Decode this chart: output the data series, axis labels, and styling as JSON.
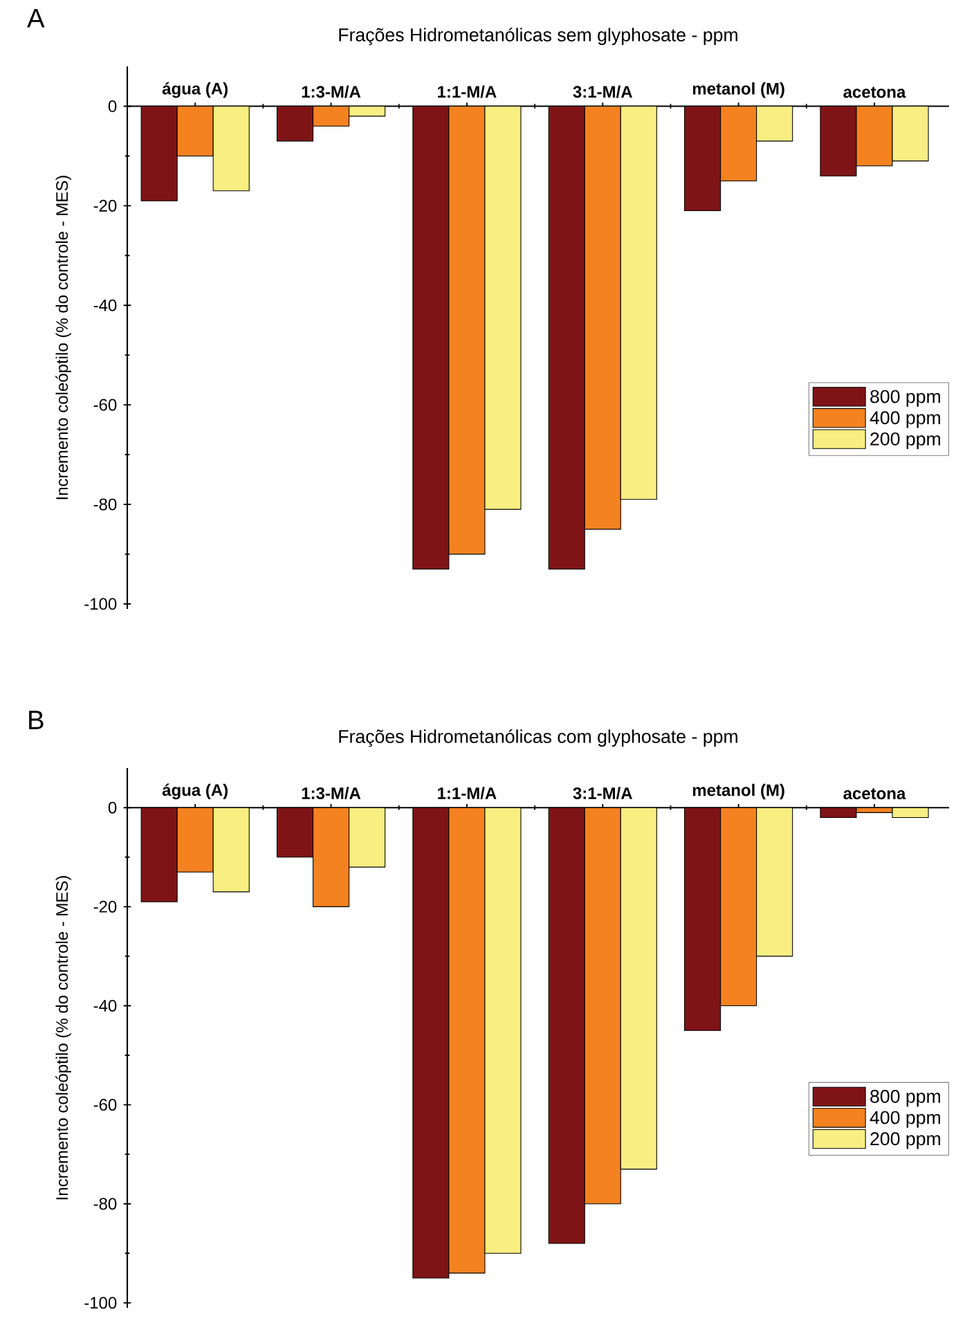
{
  "chart_data": [
    {
      "type": "bar",
      "title": "Frações Hidrometanólicas sem glyphosate - ppm",
      "ylabel": "Incremento coleóptilo (% do controle - MES)",
      "annotations": [
        "A"
      ],
      "categories": [
        "água (A)",
        "1:3-M/A",
        "1:1-M/A",
        "3:1-M/A",
        "metanol (M)",
        "acetona"
      ],
      "series": [
        {
          "name": "800 ppm",
          "color": "#7f1416",
          "values": [
            -19,
            -7,
            -93,
            -93,
            -21,
            -14
          ]
        },
        {
          "name": "400 ppm",
          "color": "#f58220",
          "values": [
            -10,
            -4,
            -90,
            -85,
            -15,
            -12
          ]
        },
        {
          "name": "200 ppm",
          "color": "#f9ee82",
          "values": [
            -17,
            -2,
            -81,
            -79,
            -7,
            -11
          ]
        }
      ],
      "ylim": [
        -101,
        8
      ],
      "yticks": [
        0,
        -20,
        -40,
        -60,
        -80,
        -100
      ],
      "legend": "right"
    },
    {
      "type": "bar",
      "title": "Frações Hidrometanólicas com glyphosate - ppm",
      "ylabel": "Incremento coleóptilo (% do controle - MES)",
      "annotations": [
        "B"
      ],
      "categories": [
        "água (A)",
        "1:3-M/A",
        "1:1-M/A",
        "3:1-M/A",
        "metanol (M)",
        "acetona"
      ],
      "series": [
        {
          "name": "800 ppm",
          "color": "#7f1416",
          "values": [
            -19,
            -10,
            -95,
            -88,
            -45,
            -2
          ]
        },
        {
          "name": "400 ppm",
          "color": "#f58220",
          "values": [
            -13,
            -20,
            -94,
            -80,
            -40,
            -1
          ]
        },
        {
          "name": "200 ppm",
          "color": "#f9ee82",
          "values": [
            -17,
            -12,
            -90,
            -73,
            -30,
            -2
          ]
        }
      ],
      "ylim": [
        -101,
        8
      ],
      "yticks": [
        0,
        -20,
        -40,
        -60,
        -80,
        -100
      ],
      "legend": "right"
    }
  ]
}
